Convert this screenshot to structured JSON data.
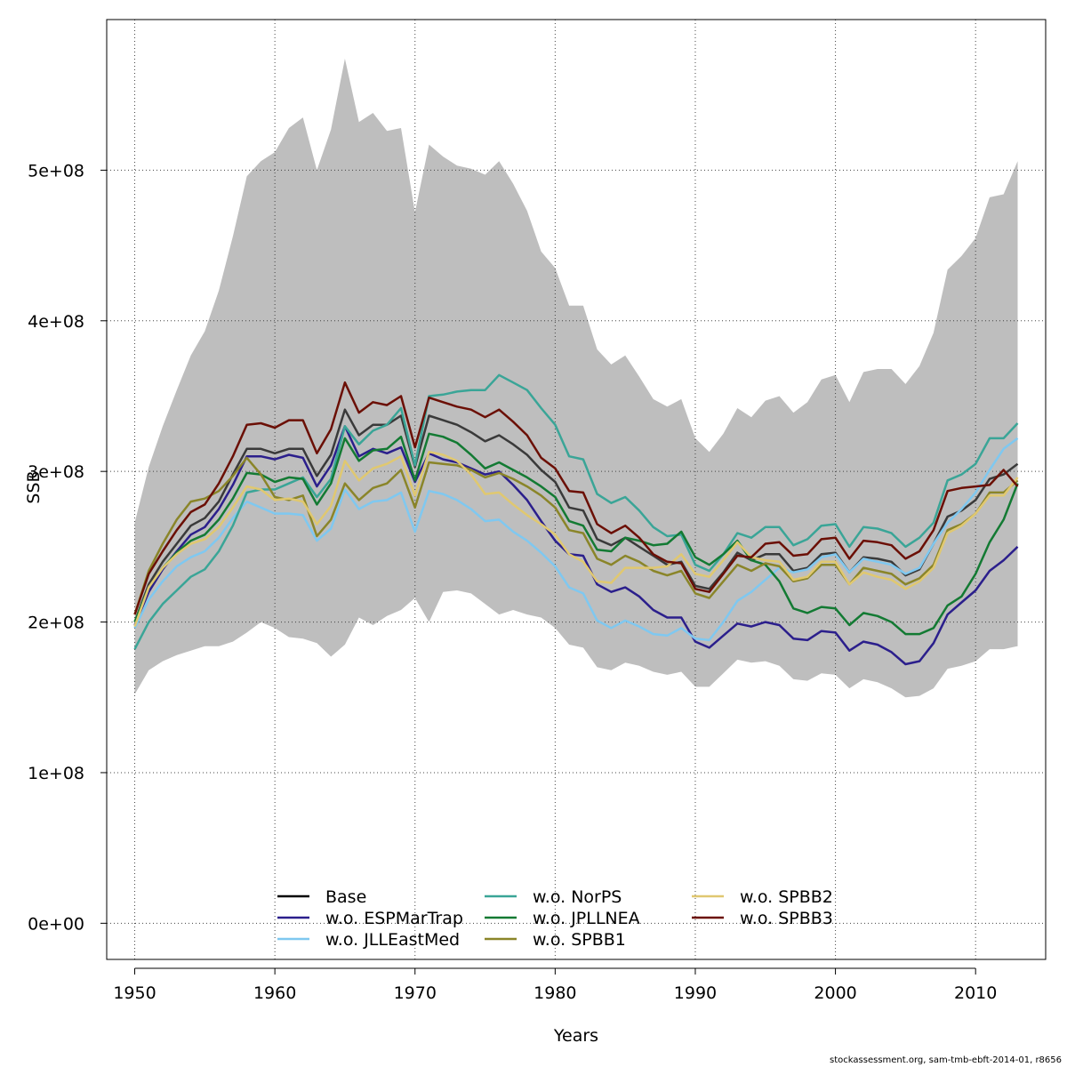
{
  "footer": "stockassessment.org, sam-tmb-ebft-2014-01, r8656",
  "chart_data": {
    "type": "line",
    "xlabel": "Years",
    "ylabel": "SSB",
    "xlim": [
      1948,
      2015
    ],
    "ylim": [
      -24000000.0,
      600000000.0
    ],
    "x_ticks": [
      1950,
      1960,
      1970,
      1980,
      1990,
      2000,
      2010
    ],
    "y_ticks": [
      0,
      100000000,
      200000000,
      300000000,
      400000000,
      500000000
    ],
    "y_tick_labels": [
      "0e+00",
      "1e+08",
      "2e+08",
      "3e+08",
      "4e+08",
      "5e+08"
    ],
    "grid": true,
    "legend_position": "bottom",
    "years": [
      1950,
      1951,
      1952,
      1953,
      1954,
      1955,
      1956,
      1957,
      1958,
      1959,
      1960,
      1961,
      1962,
      1963,
      1964,
      1965,
      1966,
      1967,
      1968,
      1969,
      1970,
      1971,
      1972,
      1973,
      1974,
      1975,
      1976,
      1977,
      1978,
      1979,
      1980,
      1981,
      1982,
      1983,
      1984,
      1985,
      1986,
      1987,
      1988,
      1989,
      1990,
      1991,
      1992,
      1993,
      1994,
      1995,
      1996,
      1997,
      1998,
      1999,
      2000,
      2001,
      2002,
      2003,
      2004,
      2005,
      2006,
      2007,
      2008,
      2009,
      2010,
      2011,
      2012,
      2013
    ],
    "band": {
      "upper": [
        266,
        303,
        330,
        354,
        377,
        393,
        420,
        456,
        496,
        506,
        512,
        528,
        535,
        500,
        527,
        574,
        532,
        538,
        526,
        528,
        472,
        517,
        509,
        503,
        501,
        497,
        506,
        491,
        473,
        446,
        435,
        410,
        410,
        381,
        371,
        377,
        363,
        348,
        343,
        348,
        322,
        313,
        325,
        342,
        336,
        347,
        350,
        339,
        346,
        361,
        364,
        346,
        366,
        368,
        368,
        358,
        370,
        392,
        434,
        443,
        455,
        482,
        484,
        506
      ],
      "lower": [
        152,
        168,
        174,
        178,
        181,
        184,
        184,
        187,
        193,
        200,
        196,
        190,
        189,
        186,
        177,
        185,
        203,
        198,
        204,
        208,
        216,
        200,
        220,
        221,
        219,
        212,
        205,
        208,
        205,
        203,
        196,
        185,
        183,
        170,
        168,
        173,
        171,
        167,
        165,
        167,
        157,
        157,
        166,
        175,
        173,
        174,
        171,
        162,
        161,
        166,
        165,
        156,
        162,
        160,
        156,
        150,
        151,
        156,
        169,
        171,
        174,
        182,
        182,
        184
      ]
    },
    "series": [
      {
        "name": "Base",
        "color": "#000000",
        "values": [
          200,
          225,
          240,
          252,
          264,
          269,
          280,
          298,
          315,
          315,
          312,
          315,
          315,
          297,
          311,
          341,
          324,
          331,
          331,
          337,
          303,
          337,
          334,
          331,
          326,
          320,
          324,
          318,
          311,
          301,
          293,
          276,
          274,
          255,
          251,
          256,
          250,
          244,
          238,
          240,
          224,
          222,
          233,
          246,
          241,
          245,
          245,
          234,
          236,
          245,
          246,
          233,
          243,
          242,
          240,
          231,
          235,
          252,
          270,
          274,
          281,
          295,
          298,
          305
        ]
      },
      {
        "name": "w.o. ESPMarTrap",
        "color": "#2b1f8c",
        "values": [
          198,
          220,
          235,
          247,
          258,
          263,
          275,
          291,
          310,
          310,
          308,
          311,
          309,
          290,
          304,
          330,
          310,
          315,
          312,
          316,
          293,
          312,
          308,
          306,
          302,
          298,
          300,
          291,
          281,
          267,
          254,
          245,
          244,
          225,
          220,
          223,
          217,
          208,
          203,
          203,
          187,
          183,
          191,
          199,
          197,
          200,
          198,
          189,
          188,
          194,
          193,
          181,
          187,
          185,
          180,
          172,
          174,
          186,
          205,
          213,
          221,
          234,
          241,
          250
        ]
      },
      {
        "name": "w.o. JLLEastMed",
        "color": "#7fc8f0",
        "values": [
          196,
          215,
          227,
          237,
          243,
          247,
          256,
          269,
          280,
          276,
          272,
          272,
          271,
          254,
          262,
          288,
          275,
          280,
          281,
          286,
          260,
          287,
          285,
          281,
          275,
          267,
          268,
          260,
          254,
          246,
          237,
          223,
          219,
          201,
          196,
          201,
          197,
          192,
          191,
          196,
          189,
          188,
          200,
          214,
          220,
          228,
          236,
          233,
          235,
          243,
          245,
          233,
          242,
          240,
          238,
          232,
          236,
          252,
          266,
          275,
          286,
          301,
          315,
          322
        ]
      },
      {
        "name": "w.o. NorPS",
        "color": "#3aa597",
        "values": [
          182,
          200,
          212,
          221,
          230,
          235,
          247,
          264,
          286,
          288,
          288,
          292,
          296,
          283,
          295,
          330,
          318,
          327,
          331,
          342,
          304,
          350,
          351,
          353,
          354,
          354,
          364,
          359,
          354,
          342,
          331,
          310,
          308,
          285,
          279,
          283,
          274,
          263,
          257,
          258,
          238,
          234,
          245,
          259,
          256,
          263,
          263,
          251,
          255,
          264,
          265,
          250,
          263,
          262,
          259,
          250,
          256,
          266,
          294,
          298,
          305,
          322,
          322,
          332
        ]
      },
      {
        "name": "w.o. JPLLNEA",
        "color": "#137a33",
        "values": [
          200,
          223,
          236,
          246,
          254,
          258,
          268,
          282,
          299,
          298,
          293,
          296,
          295,
          278,
          292,
          322,
          307,
          314,
          315,
          323,
          294,
          325,
          323,
          319,
          311,
          302,
          306,
          301,
          296,
          290,
          283,
          267,
          264,
          248,
          247,
          256,
          254,
          251,
          252,
          260,
          243,
          238,
          245,
          254,
          241,
          238,
          227,
          209,
          206,
          210,
          209,
          198,
          206,
          204,
          200,
          192,
          192,
          196,
          211,
          217,
          232,
          253,
          268,
          292
        ]
      },
      {
        "name": "w.o. SPBB1",
        "color": "#8a8529",
        "values": [
          205,
          234,
          252,
          268,
          280,
          282,
          287,
          297,
          309,
          298,
          283,
          281,
          284,
          257,
          268,
          292,
          281,
          289,
          292,
          301,
          276,
          306,
          305,
          304,
          301,
          296,
          299,
          295,
          290,
          284,
          276,
          261,
          259,
          242,
          238,
          244,
          240,
          234,
          231,
          234,
          219,
          216,
          227,
          238,
          234,
          239,
          237,
          227,
          229,
          238,
          238,
          225,
          236,
          234,
          232,
          225,
          229,
          238,
          261,
          265,
          272,
          286,
          286,
          294
        ]
      },
      {
        "name": "w.o. SPBB2",
        "color": "#e0c870",
        "values": [
          197,
          223,
          236,
          245,
          252,
          255,
          263,
          276,
          290,
          288,
          281,
          282,
          280,
          265,
          277,
          307,
          294,
          302,
          305,
          310,
          284,
          313,
          311,
          307,
          298,
          285,
          286,
          278,
          271,
          265,
          258,
          245,
          240,
          227,
          226,
          236,
          236,
          236,
          237,
          245,
          232,
          230,
          241,
          253,
          243,
          241,
          240,
          228,
          230,
          240,
          240,
          225,
          233,
          230,
          228,
          222,
          227,
          236,
          259,
          264,
          272,
          284,
          284,
          296
        ]
      },
      {
        "name": "w.o. SPBB3",
        "color": "#6b0f05",
        "values": [
          205,
          232,
          247,
          261,
          273,
          278,
          292,
          310,
          331,
          332,
          329,
          334,
          334,
          312,
          328,
          359,
          339,
          346,
          344,
          350,
          316,
          349,
          346,
          343,
          341,
          336,
          341,
          333,
          324,
          309,
          302,
          287,
          286,
          265,
          259,
          264,
          256,
          245,
          240,
          239,
          222,
          220,
          232,
          244,
          243,
          252,
          253,
          244,
          245,
          255,
          256,
          242,
          254,
          253,
          251,
          242,
          247,
          261,
          287,
          289,
          290,
          291,
          301,
          290
        ]
      }
    ],
    "value_unit_scale": 1000000
  }
}
